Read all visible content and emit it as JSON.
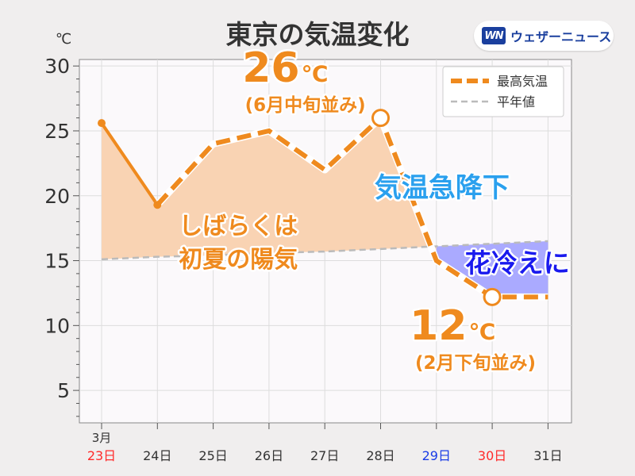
{
  "brand": {
    "mark": "WN",
    "name": "ウェザーニュース"
  },
  "colors": {
    "main": "#ef8a1e",
    "normal": "#bbbbbb",
    "warm_fill": "#f9d3b3",
    "cold_fill": "#aaaaff",
    "sunday": "#ff2a2a",
    "saturday": "#1a3ce6",
    "cold_text": "#1a1aee",
    "alert_text": "#2aa0ee"
  },
  "chart_data": {
    "type": "line",
    "title": "東京の気温変化",
    "ylabel": "℃",
    "ylim": [
      2.5,
      30.5
    ],
    "yticks": [
      5,
      10,
      15,
      20,
      25,
      30
    ],
    "month_label": "3月",
    "categories": [
      "23日",
      "24日",
      "25日",
      "26日",
      "27日",
      "28日",
      "29日",
      "30日",
      "31日"
    ],
    "category_colors": [
      "sunday",
      "",
      "",
      "",
      "",
      "",
      "saturday",
      "sunday",
      ""
    ],
    "series": [
      {
        "name": "最高気温",
        "style": "dashed-thick",
        "values": [
          25.6,
          19.3,
          24.0,
          25.0,
          22.0,
          26.0,
          15.0,
          12.2,
          12.2
        ]
      },
      {
        "name": "平年値",
        "style": "dashed-thin",
        "values": [
          15.1,
          15.3,
          15.4,
          15.6,
          15.7,
          15.9,
          16.1,
          16.3,
          16.5
        ]
      }
    ],
    "legend_position": "top-right",
    "grid": true,
    "annotations": {
      "high_value": {
        "main": "26",
        "unit": "℃",
        "note": "(6月中旬並み)"
      },
      "low_value": {
        "main": "12",
        "unit": "℃",
        "note": "(2月下旬並み)"
      },
      "warm_text": [
        "しばらくは",
        "初夏の陽気"
      ],
      "drop_text": "気温急降下",
      "cold_text": "花冷えに"
    }
  }
}
